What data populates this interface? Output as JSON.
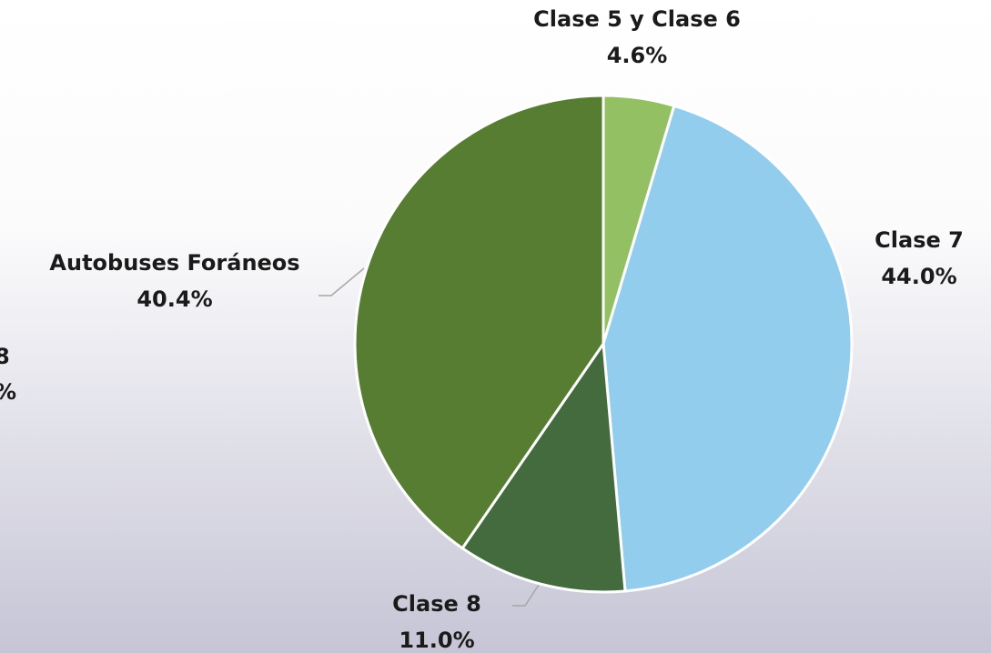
{
  "chart_data": {
    "type": "pie",
    "categories": [
      "Clase 5 y Clase 6",
      "Clase 7",
      "Clase 8",
      "Autobuses Foráneos"
    ],
    "values": [
      4.6,
      44.0,
      11.0,
      40.4
    ],
    "value_labels": [
      "4.6%",
      "44.0%",
      "11.0%",
      "40.4%"
    ],
    "colors": [
      "#93c062",
      "#92cdee",
      "#436b3d",
      "#577d32"
    ],
    "clipped_label": [
      "8",
      "%"
    ]
  }
}
